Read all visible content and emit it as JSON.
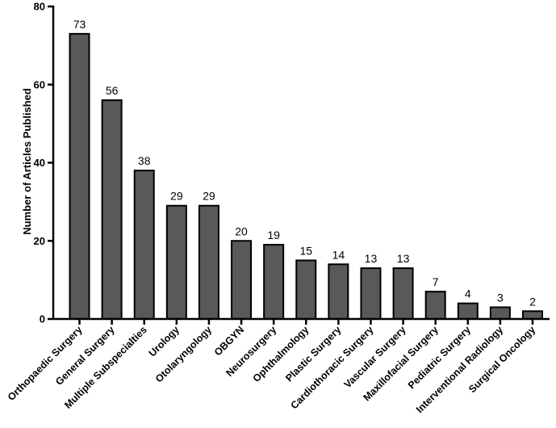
{
  "chart_data": {
    "type": "bar",
    "xlabel": "",
    "ylabel": "Number of Articles Published",
    "ylim": [
      0,
      80
    ],
    "yticks": [
      0,
      20,
      40,
      60,
      80
    ],
    "grid": false,
    "bar_color": "#595959",
    "categories": [
      "Orthopaedic Surgery",
      "General Surgery",
      "Multiple Subspecialties",
      "Urology",
      "Otolaryngology",
      "OBGYN",
      "Neurosurgery",
      "Ophthalmology",
      "Plastic Surgery",
      "Cardiothoracic Surgery",
      "Vascular Surgery",
      "Maxillofacial Surgery",
      "Pediatric Surgery",
      "Interventional Radiology",
      "Surgical Oncology"
    ],
    "values": [
      73,
      56,
      38,
      29,
      29,
      20,
      19,
      15,
      14,
      13,
      13,
      7,
      4,
      3,
      2
    ]
  }
}
